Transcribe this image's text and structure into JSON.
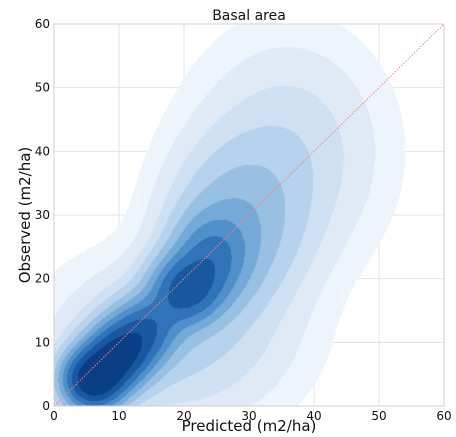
{
  "chart_data": {
    "type": "density contour (filled KDE)",
    "title": "Basal area",
    "xlabel": "Predicted (m2/ha)",
    "ylabel": "Observed (m2/ha)",
    "xlim": [
      0,
      60
    ],
    "ylim": [
      0,
      60
    ],
    "x_ticks": [
      0,
      10,
      20,
      30,
      40,
      50,
      60
    ],
    "y_ticks": [
      0,
      10,
      20,
      30,
      40,
      50,
      60
    ],
    "grid": true,
    "colormap": "Blues",
    "level_colors": [
      "#eef4fb",
      "#dfeaf6",
      "#cfe0f2",
      "#b6d2ec",
      "#98c0e3",
      "#74a9d8",
      "#4f8fca",
      "#2f73b8",
      "#1858a1",
      "#0a3f85"
    ],
    "reference_line": {
      "type": "identity (1:1)",
      "from": [
        0,
        0
      ],
      "to": [
        60,
        60
      ],
      "color": "#ff7f7f",
      "style": "dotted"
    }
  }
}
